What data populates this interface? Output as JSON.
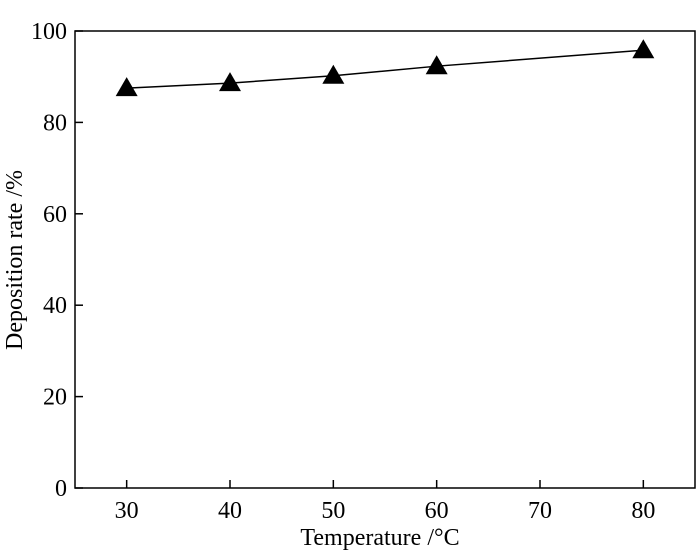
{
  "chart_data": {
    "type": "line",
    "x_label": "Temperature /°C",
    "y_label": "Deposition rate /%",
    "x": [
      30,
      40,
      50,
      60,
      80
    ],
    "series": [
      {
        "values": [
          87.5,
          88.6,
          90.2,
          92.3,
          95.8
        ],
        "color": "#000000",
        "marker": "triangle"
      }
    ],
    "xlim": [
      25,
      85
    ],
    "xticks": [
      30,
      40,
      50,
      60,
      70,
      80
    ],
    "ylim": [
      0,
      100
    ],
    "yticks": [
      0,
      20,
      40,
      60,
      80,
      100
    ],
    "grid": false
  }
}
